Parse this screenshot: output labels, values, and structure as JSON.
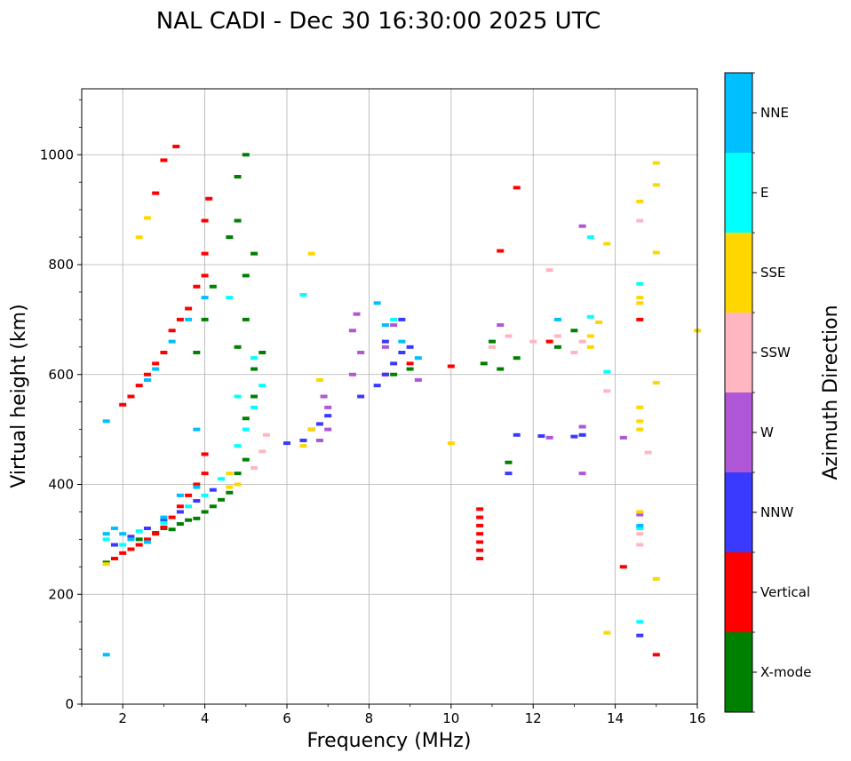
{
  "chart_data": {
    "type": "scatter",
    "title": "NAL CADI - Dec 30 16:30:00 2025 UTC",
    "xlabel": "Frequency (MHz)",
    "ylabel": "Virtual height (km)",
    "xlim": [
      1,
      16
    ],
    "ylim": [
      0,
      1120
    ],
    "grid": true,
    "x_ticks": [
      2,
      4,
      6,
      8,
      10,
      12,
      14,
      16
    ],
    "y_ticks": [
      0,
      200,
      400,
      600,
      800,
      1000
    ],
    "colorbar": {
      "label": "Azimuth Direction",
      "categories": [
        {
          "name": "X-mode",
          "color": "#008000"
        },
        {
          "name": "Vertical",
          "color": "#ff0000"
        },
        {
          "name": "NNW",
          "color": "#3a3aff"
        },
        {
          "name": "W",
          "color": "#b057d8"
        },
        {
          "name": "SSW",
          "color": "#ffb6c1"
        },
        {
          "name": "SSE",
          "color": "#ffd700"
        },
        {
          "name": "E",
          "color": "#00ffff"
        },
        {
          "name": "NNE",
          "color": "#00bfff"
        }
      ]
    },
    "series": [
      {
        "name": "X-mode",
        "points": [
          [
            1.6,
            258
          ],
          [
            2.4,
            300
          ],
          [
            2.8,
            312
          ],
          [
            3.0,
            320
          ],
          [
            3.2,
            318
          ],
          [
            3.4,
            328
          ],
          [
            3.6,
            335
          ],
          [
            3.8,
            338
          ],
          [
            4.0,
            350
          ],
          [
            4.2,
            360
          ],
          [
            4.4,
            372
          ],
          [
            4.6,
            385
          ],
          [
            4.8,
            420
          ],
          [
            5.0,
            445
          ],
          [
            5.0,
            520
          ],
          [
            5.2,
            560
          ],
          [
            5.2,
            610
          ],
          [
            5.4,
            640
          ],
          [
            4.8,
            650
          ],
          [
            5.0,
            700
          ],
          [
            5.0,
            780
          ],
          [
            5.2,
            820
          ],
          [
            4.6,
            850
          ],
          [
            4.8,
            880
          ],
          [
            4.8,
            960
          ],
          [
            5.0,
            1000
          ],
          [
            3.8,
            640
          ],
          [
            4.0,
            700
          ],
          [
            4.2,
            760
          ],
          [
            11.4,
            440
          ],
          [
            8.6,
            600
          ],
          [
            9.0,
            610
          ],
          [
            12.6,
            650
          ],
          [
            13.0,
            680
          ],
          [
            11.2,
            610
          ],
          [
            11.6,
            630
          ],
          [
            10.8,
            620
          ],
          [
            11.0,
            660
          ]
        ]
      },
      {
        "name": "Vertical",
        "points": [
          [
            1.8,
            265
          ],
          [
            2.0,
            275
          ],
          [
            2.2,
            282
          ],
          [
            2.4,
            290
          ],
          [
            2.6,
            300
          ],
          [
            2.8,
            310
          ],
          [
            3.0,
            322
          ],
          [
            3.2,
            340
          ],
          [
            3.4,
            360
          ],
          [
            3.6,
            380
          ],
          [
            3.8,
            400
          ],
          [
            4.0,
            420
          ],
          [
            4.0,
            455
          ],
          [
            2.0,
            545
          ],
          [
            2.2,
            560
          ],
          [
            2.4,
            580
          ],
          [
            2.6,
            600
          ],
          [
            2.8,
            620
          ],
          [
            3.0,
            640
          ],
          [
            3.2,
            680
          ],
          [
            3.4,
            700
          ],
          [
            3.6,
            720
          ],
          [
            3.8,
            760
          ],
          [
            4.0,
            780
          ],
          [
            4.0,
            820
          ],
          [
            4.0,
            880
          ],
          [
            4.1,
            920
          ],
          [
            3.0,
            990
          ],
          [
            3.3,
            1015
          ],
          [
            2.8,
            930
          ],
          [
            10.7,
            280
          ],
          [
            10.7,
            295
          ],
          [
            10.7,
            310
          ],
          [
            10.7,
            325
          ],
          [
            10.7,
            340
          ],
          [
            10.7,
            355
          ],
          [
            10.7,
            265
          ],
          [
            8.4,
            600
          ],
          [
            9.0,
            620
          ],
          [
            10.0,
            615
          ],
          [
            11.2,
            825
          ],
          [
            11.6,
            940
          ],
          [
            12.4,
            660
          ],
          [
            14.2,
            250
          ],
          [
            15.0,
            90
          ],
          [
            14.6,
            700
          ]
        ]
      },
      {
        "name": "NNW",
        "points": [
          [
            1.8,
            290
          ],
          [
            2.2,
            305
          ],
          [
            2.6,
            320
          ],
          [
            3.0,
            335
          ],
          [
            3.4,
            350
          ],
          [
            3.8,
            370
          ],
          [
            4.2,
            390
          ],
          [
            6.4,
            480
          ],
          [
            6.6,
            500
          ],
          [
            6.8,
            510
          ],
          [
            7.0,
            525
          ],
          [
            8.2,
            580
          ],
          [
            8.4,
            600
          ],
          [
            8.6,
            620
          ],
          [
            8.8,
            640
          ],
          [
            9.0,
            650
          ],
          [
            8.4,
            660
          ],
          [
            8.8,
            700
          ],
          [
            7.8,
            560
          ],
          [
            11.6,
            490
          ],
          [
            12.2,
            488
          ],
          [
            13.0,
            487
          ],
          [
            13.2,
            490
          ],
          [
            14.6,
            125
          ],
          [
            6.0,
            475
          ],
          [
            11.4,
            420
          ]
        ]
      },
      {
        "name": "W",
        "points": [
          [
            6.8,
            480
          ],
          [
            7.0,
            500
          ],
          [
            7.0,
            540
          ],
          [
            6.9,
            560
          ],
          [
            7.6,
            600
          ],
          [
            7.8,
            640
          ],
          [
            7.6,
            680
          ],
          [
            7.7,
            710
          ],
          [
            8.4,
            650
          ],
          [
            8.6,
            690
          ],
          [
            9.2,
            590
          ],
          [
            13.2,
            870
          ],
          [
            13.2,
            420
          ],
          [
            13.2,
            505
          ],
          [
            14.6,
            345
          ],
          [
            11.2,
            690
          ],
          [
            12.4,
            485
          ],
          [
            14.2,
            485
          ]
        ]
      },
      {
        "name": "SSW",
        "points": [
          [
            5.2,
            430
          ],
          [
            5.4,
            460
          ],
          [
            5.5,
            490
          ],
          [
            11.0,
            650
          ],
          [
            11.4,
            670
          ],
          [
            12.0,
            660
          ],
          [
            12.6,
            670
          ],
          [
            13.2,
            660
          ],
          [
            13.0,
            640
          ],
          [
            14.6,
            290
          ],
          [
            14.6,
            310
          ],
          [
            14.8,
            458
          ],
          [
            13.8,
            570
          ],
          [
            12.4,
            790
          ],
          [
            14.6,
            880
          ]
        ]
      },
      {
        "name": "SSE",
        "points": [
          [
            1.6,
            255
          ],
          [
            4.6,
            395
          ],
          [
            4.8,
            400
          ],
          [
            4.6,
            420
          ],
          [
            6.4,
            470
          ],
          [
            6.6,
            500
          ],
          [
            6.8,
            590
          ],
          [
            6.6,
            820
          ],
          [
            2.4,
            850
          ],
          [
            2.6,
            885
          ],
          [
            14.6,
            350
          ],
          [
            14.6,
            515
          ],
          [
            14.6,
            540
          ],
          [
            14.6,
            500
          ],
          [
            14.6,
            730
          ],
          [
            14.6,
            740
          ],
          [
            14.6,
            915
          ],
          [
            15.0,
            985
          ],
          [
            15.0,
            945
          ],
          [
            15.0,
            822
          ],
          [
            15.0,
            585
          ],
          [
            15.0,
            228
          ],
          [
            13.8,
            130
          ],
          [
            13.8,
            838
          ],
          [
            13.6,
            695
          ],
          [
            13.4,
            670
          ],
          [
            13.4,
            650
          ],
          [
            16.0,
            680
          ],
          [
            10.0,
            475
          ]
        ]
      },
      {
        "name": "E",
        "points": [
          [
            1.6,
            300
          ],
          [
            2.0,
            290
          ],
          [
            2.4,
            315
          ],
          [
            3.0,
            330
          ],
          [
            3.6,
            360
          ],
          [
            4.0,
            380
          ],
          [
            4.4,
            410
          ],
          [
            4.8,
            470
          ],
          [
            5.0,
            500
          ],
          [
            5.2,
            540
          ],
          [
            5.4,
            580
          ],
          [
            5.2,
            630
          ],
          [
            4.8,
            560
          ],
          [
            4.6,
            740
          ],
          [
            6.4,
            745
          ],
          [
            13.4,
            850
          ],
          [
            13.4,
            705
          ],
          [
            13.8,
            605
          ],
          [
            14.6,
            320
          ],
          [
            14.6,
            150
          ],
          [
            14.6,
            765
          ],
          [
            8.6,
            700
          ]
        ]
      },
      {
        "name": "NNE",
        "points": [
          [
            1.6,
            90
          ],
          [
            1.6,
            310
          ],
          [
            1.8,
            320
          ],
          [
            2.0,
            310
          ],
          [
            2.2,
            300
          ],
          [
            2.6,
            295
          ],
          [
            3.0,
            340
          ],
          [
            3.4,
            380
          ],
          [
            3.8,
            395
          ],
          [
            1.6,
            515
          ],
          [
            2.6,
            590
          ],
          [
            2.8,
            610
          ],
          [
            3.2,
            660
          ],
          [
            3.6,
            700
          ],
          [
            4.0,
            740
          ],
          [
            3.8,
            500
          ],
          [
            8.2,
            730
          ],
          [
            8.4,
            690
          ],
          [
            8.8,
            660
          ],
          [
            9.2,
            630
          ],
          [
            12.6,
            700
          ],
          [
            14.6,
            325
          ]
        ]
      }
    ]
  }
}
